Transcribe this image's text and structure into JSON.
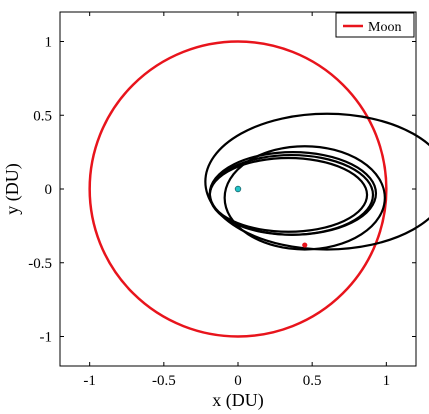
{
  "chart_data": {
    "type": "line",
    "title": "",
    "xlabel": "x (DU)",
    "ylabel": "y (DU)",
    "xlim": [
      -1.2,
      1.2
    ],
    "ylim": [
      -1.2,
      1.2
    ],
    "x_ticks": [
      -1,
      -0.5,
      0,
      0.5,
      1
    ],
    "x_tick_labels": [
      "-1",
      "-0.5",
      "0",
      "0.5",
      "1"
    ],
    "y_ticks": [
      -1,
      -0.5,
      0,
      0.5,
      1
    ],
    "y_tick_labels": [
      "-1",
      "-0.5",
      "0",
      "0.5",
      "1"
    ],
    "grid": false,
    "legend": {
      "position": "top-right",
      "entries": [
        {
          "name": "Moon",
          "color": "#e8141c"
        }
      ]
    },
    "series": [
      {
        "name": "Moon",
        "style": "line",
        "color": "#e8141c",
        "description_shape": "circle",
        "center": [
          0,
          0
        ],
        "radius": 1
      },
      {
        "style": "line",
        "color": "#000000",
        "description_shape": "loop",
        "center": [
          0.6,
          0.05
        ],
        "radius_x": 0.82,
        "radius_y": 0.46
      },
      {
        "style": "line",
        "color": "#000000",
        "description_shape": "loop",
        "center": [
          0.36,
          -0.04
        ],
        "radius_x": 0.55,
        "radius_y": 0.27
      },
      {
        "style": "line",
        "color": "#000000",
        "description_shape": "loop",
        "center": [
          0.34,
          -0.04
        ],
        "radius_x": 0.53,
        "radius_y": 0.25
      },
      {
        "style": "line",
        "color": "#000000",
        "description_shape": "loop",
        "center": [
          0.37,
          -0.03
        ],
        "radius_x": 0.56,
        "radius_y": 0.28
      },
      {
        "style": "line",
        "color": "#000000",
        "description_shape": "loop",
        "center": [
          0.45,
          -0.06
        ],
        "radius_x": 0.54,
        "radius_y": 0.35
      }
    ],
    "markers": [
      {
        "x": 0.0,
        "y": 0.0,
        "color": "#22c4c8",
        "shape": "circle"
      },
      {
        "x": 0.45,
        "y": -0.38,
        "color": "#e8141c",
        "shape": "dot"
      }
    ]
  }
}
